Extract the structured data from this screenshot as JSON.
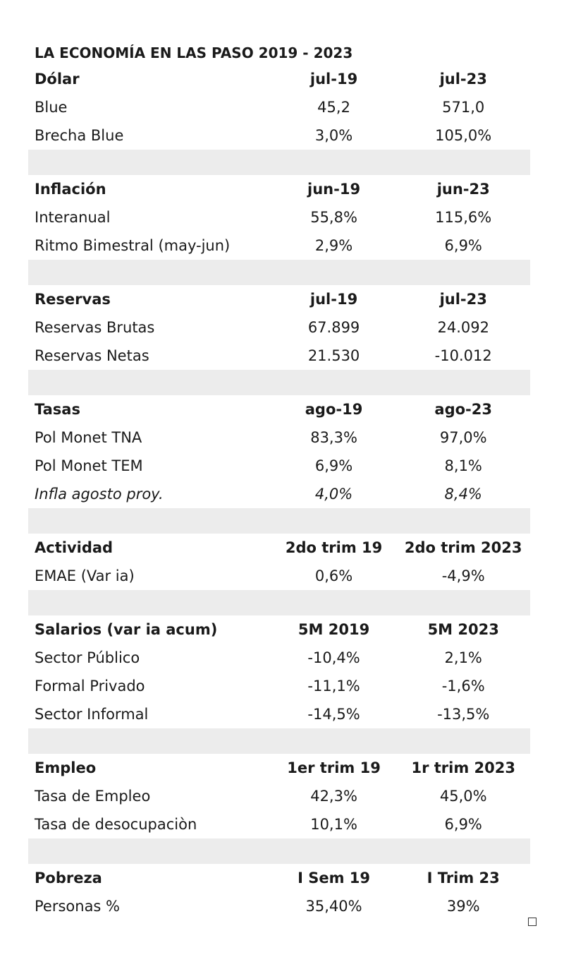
{
  "title": "LA ECONOMÍA EN LAS PASO 2019 - 2023",
  "sections": [
    {
      "header": [
        "Dólar",
        "jul-19",
        "jul-23"
      ],
      "rows": [
        [
          "Blue",
          "45,2",
          "571,0"
        ],
        [
          "Brecha Blue",
          "3,0%",
          "105,0%"
        ]
      ]
    },
    {
      "header": [
        "Inflación",
        "jun-19",
        "jun-23"
      ],
      "rows": [
        [
          "Interanual",
          "55,8%",
          "115,6%"
        ],
        [
          "Ritmo Bimestral (may-jun)",
          "2,9%",
          "6,9%"
        ]
      ]
    },
    {
      "header": [
        "Reservas",
        "jul-19",
        "jul-23"
      ],
      "rows": [
        [
          "Reservas Brutas",
          "67.899",
          "24.092"
        ],
        [
          "Reservas Netas",
          "21.530",
          "-10.012"
        ]
      ]
    },
    {
      "header": [
        "Tasas",
        "ago-19",
        "ago-23"
      ],
      "rows": [
        [
          "Pol Monet TNA",
          "83,3%",
          "97,0%"
        ],
        [
          "Pol Monet TEM",
          "6,9%",
          "8,1%"
        ],
        [
          "Infla agosto proy.",
          "4,0%",
          "8,4%"
        ]
      ]
    },
    {
      "header": [
        "Actividad",
        "2do trim 19",
        "2do trim 2023"
      ],
      "rows": [
        [
          "EMAE (Var ia)",
          "0,6%",
          "-4,9%"
        ]
      ]
    },
    {
      "header": [
        "Salarios (var ia acum)",
        "5M 2019",
        "5M 2023"
      ],
      "rows": [
        [
          "Sector Público",
          "-10,4%",
          "2,1%"
        ],
        [
          "Formal Privado",
          "-11,1%",
          "-1,6%"
        ],
        [
          "Sector Informal",
          "-14,5%",
          "-13,5%"
        ]
      ]
    },
    {
      "header": [
        "Empleo",
        "1er trim 19",
        "1r trim 2023"
      ],
      "rows": [
        [
          "Tasa de Empleo",
          "42,3%",
          "45,0%"
        ],
        [
          "Tasa de desocupaciòn",
          "10,1%",
          "6,9%"
        ]
      ]
    },
    {
      "header": [
        "Pobreza",
        "I Sem 19",
        "I Trim 23"
      ],
      "rows": [
        [
          "Personas %",
          "35,40%",
          "39%"
        ]
      ]
    }
  ]
}
